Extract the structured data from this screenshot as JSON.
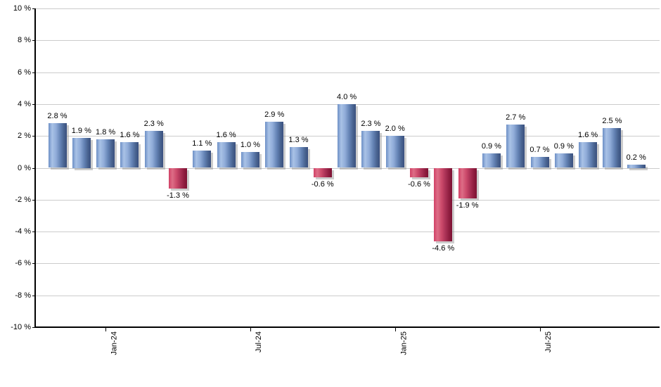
{
  "chart_data": {
    "type": "bar",
    "title": "",
    "values": [
      2.8,
      1.9,
      1.8,
      1.6,
      2.3,
      -1.3,
      1.1,
      1.6,
      1.0,
      2.9,
      1.3,
      -0.6,
      4.0,
      2.3,
      2.0,
      -0.6,
      -4.6,
      -1.9,
      0.9,
      2.7,
      0.7,
      0.9,
      1.6,
      2.5,
      0.2
    ],
    "bar_labels": [
      "2.8 %",
      "1.9 %",
      "1.8 %",
      "1.6 %",
      "2.3 %",
      "-1.3 %",
      "1.1 %",
      "1.6 %",
      "1.0 %",
      "2.9 %",
      "1.3 %",
      "-0.6 %",
      "4.0 %",
      "2.3 %",
      "2.0 %",
      "-0.6 %",
      "-4.6 %",
      "-1.9 %",
      "0.9 %",
      "2.7 %",
      "0.7 %",
      "0.9 %",
      "1.6 %",
      "2.5 %",
      "0.2 %"
    ],
    "x_ticks": [
      {
        "label": "Jan-24",
        "bar_index": 2
      },
      {
        "label": "Jul-24",
        "bar_index": 8
      },
      {
        "label": "Jan-25",
        "bar_index": 14
      },
      {
        "label": "Jul-25",
        "bar_index": 20
      }
    ],
    "y_ticks": [
      {
        "value": 10,
        "label": "10 %"
      },
      {
        "value": 8,
        "label": "8 %"
      },
      {
        "value": 6,
        "label": "6 %"
      },
      {
        "value": 4,
        "label": "4 %"
      },
      {
        "value": 2,
        "label": "2 %"
      },
      {
        "value": 0,
        "label": "0 %"
      },
      {
        "value": -2,
        "label": "-2 %"
      },
      {
        "value": -4,
        "label": "-4 %"
      },
      {
        "value": -6,
        "label": "-6 %"
      },
      {
        "value": -8,
        "label": "-8 %"
      },
      {
        "value": -10,
        "label": "-10 %"
      }
    ],
    "ylim": [
      -10,
      10
    ],
    "grid": true,
    "legend": "none",
    "colors": {
      "background": "#ffffff",
      "gridline": "#cccccc",
      "axis": "#000000",
      "label_text": "#000000",
      "bar_shadow": "rgba(145,145,145,0.45)",
      "positive_bar_gradient": [
        "#6d8fc6",
        "#a9c2e6",
        "#8fabd8",
        "#6382b4",
        "#48628f",
        "#3a507f"
      ],
      "negative_bar_gradient": [
        "#d14166",
        "#dd6d86",
        "#cc4a6b",
        "#a83054",
        "#8d1c3e",
        "#7d1334"
      ]
    }
  }
}
